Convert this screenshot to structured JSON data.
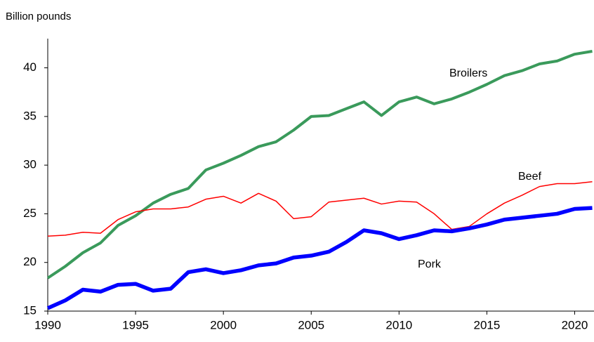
{
  "chart_data": {
    "type": "line",
    "y_label": "Billion pounds",
    "x": [
      1990,
      1991,
      1992,
      1993,
      1994,
      1995,
      1996,
      1997,
      1998,
      1999,
      2000,
      2001,
      2002,
      2003,
      2004,
      2005,
      2006,
      2007,
      2008,
      2009,
      2010,
      2011,
      2012,
      2013,
      2014,
      2015,
      2016,
      2017,
      2018,
      2019,
      2020,
      2021
    ],
    "series": [
      {
        "name": "Broilers",
        "color": "#3a9a5b",
        "values": [
          18.4,
          19.6,
          21.0,
          22.0,
          23.8,
          24.8,
          26.1,
          27.0,
          27.6,
          29.5,
          30.2,
          31.0,
          31.9,
          32.4,
          33.6,
          35.0,
          35.1,
          35.8,
          36.5,
          35.1,
          36.5,
          37.0,
          36.3,
          36.8,
          37.5,
          38.3,
          39.2,
          39.7,
          40.4,
          40.7,
          41.4,
          41.7
        ]
      },
      {
        "name": "Beef",
        "color": "#ff0000",
        "values": [
          22.7,
          22.8,
          23.1,
          23.0,
          24.4,
          25.2,
          25.5,
          25.5,
          25.7,
          26.5,
          26.8,
          26.1,
          27.1,
          26.3,
          24.5,
          24.7,
          26.2,
          26.4,
          26.6,
          26.0,
          26.3,
          26.2,
          25.0,
          23.4,
          23.7,
          25.0,
          26.1,
          26.9,
          27.8,
          28.1,
          28.1,
          28.3
        ]
      },
      {
        "name": "Pork",
        "color": "#0000ff",
        "values": [
          15.3,
          16.1,
          17.2,
          17.0,
          17.7,
          17.8,
          17.1,
          17.3,
          19.0,
          19.3,
          18.9,
          19.2,
          19.7,
          19.9,
          20.5,
          20.7,
          21.1,
          22.1,
          23.3,
          23.0,
          22.4,
          22.8,
          23.3,
          23.2,
          23.5,
          23.9,
          24.4,
          24.6,
          24.8,
          25.0,
          25.5,
          25.6
        ]
      }
    ],
    "xlim": [
      1990,
      2021.1
    ],
    "xticks": [
      1990,
      1995,
      2000,
      2005,
      2010,
      2015,
      2020
    ],
    "ylim": [
      15,
      43
    ],
    "yticks": [
      15,
      20,
      25,
      30,
      35,
      40
    ],
    "grid": false
  }
}
